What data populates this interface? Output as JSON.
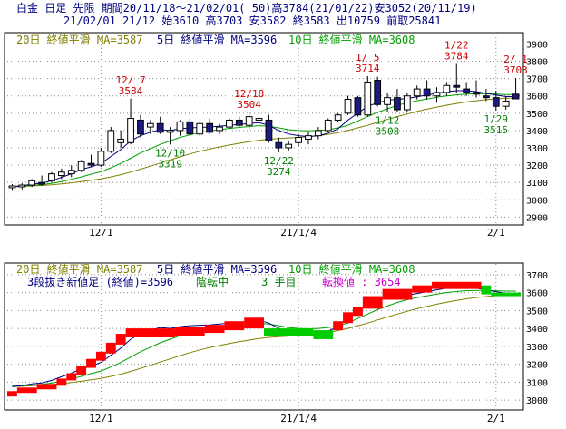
{
  "header": {
    "line1": "白金 日足 先限 期間20/11/18～21/02/01( 50)高3784(21/01/22)安3052(20/11/19)",
    "line2": "21/02/01 21/12 始3610 高3703 安3582 終3583 出10759 前取25841"
  },
  "colors": {
    "up": "#ffffff",
    "down": "#1a1a80",
    "ma20": "#808000",
    "ma5": "#000080",
    "ma10": "#00a000",
    "red": "#cc0000",
    "green": "#008000",
    "magenta": "#cc00cc",
    "brick_up": "#ff0000",
    "brick_down": "#00cc00"
  },
  "chart_data": [
    {
      "type": "candlestick",
      "legend": [
        "20日 終値平滑 MA=3587",
        "5日 終値平滑 MA=3596",
        "10日 終値平滑 MA=3608"
      ],
      "y_ticks": [
        3900,
        3800,
        3700,
        3600,
        3500,
        3400,
        3300,
        3200,
        3100,
        3000,
        2900
      ],
      "ylim": [
        2860,
        3960
      ],
      "x_ticks": [
        "12/1",
        "21/1/4",
        "2/1"
      ],
      "x_tick_index": [
        9,
        29,
        49
      ],
      "ohlc": [
        [
          3070,
          3090,
          3052,
          3080
        ],
        [
          3075,
          3095,
          3060,
          3085
        ],
        [
          3085,
          3120,
          3075,
          3110
        ],
        [
          3100,
          3140,
          3080,
          3090
        ],
        [
          3110,
          3160,
          3100,
          3150
        ],
        [
          3140,
          3180,
          3120,
          3160
        ],
        [
          3150,
          3200,
          3130,
          3170
        ],
        [
          3170,
          3230,
          3160,
          3220
        ],
        [
          3210,
          3260,
          3190,
          3200
        ],
        [
          3200,
          3300,
          3190,
          3280
        ],
        [
          3280,
          3420,
          3270,
          3400
        ],
        [
          3330,
          3400,
          3300,
          3350
        ],
        [
          3330,
          3584,
          3320,
          3470
        ],
        [
          3460,
          3490,
          3360,
          3380
        ],
        [
          3420,
          3460,
          3380,
          3440
        ],
        [
          3440,
          3480,
          3380,
          3390
        ],
        [
          3390,
          3420,
          3319,
          3400
        ],
        [
          3400,
          3460,
          3370,
          3450
        ],
        [
          3450,
          3470,
          3370,
          3380
        ],
        [
          3380,
          3450,
          3370,
          3440
        ],
        [
          3440,
          3470,
          3380,
          3390
        ],
        [
          3400,
          3440,
          3380,
          3420
        ],
        [
          3420,
          3470,
          3410,
          3460
        ],
        [
          3460,
          3480,
          3420,
          3430
        ],
        [
          3430,
          3504,
          3410,
          3480
        ],
        [
          3460,
          3500,
          3430,
          3470
        ],
        [
          3460,
          3490,
          3330,
          3340
        ],
        [
          3330,
          3360,
          3274,
          3300
        ],
        [
          3300,
          3340,
          3280,
          3320
        ],
        [
          3330,
          3380,
          3310,
          3360
        ],
        [
          3350,
          3390,
          3320,
          3370
        ],
        [
          3370,
          3420,
          3350,
          3400
        ],
        [
          3400,
          3470,
          3390,
          3460
        ],
        [
          3460,
          3500,
          3450,
          3490
        ],
        [
          3500,
          3600,
          3490,
          3580
        ],
        [
          3590,
          3600,
          3480,
          3490
        ],
        [
          3490,
          3714,
          3480,
          3680
        ],
        [
          3690,
          3710,
          3540,
          3550
        ],
        [
          3550,
          3620,
          3508,
          3590
        ],
        [
          3590,
          3640,
          3510,
          3520
        ],
        [
          3520,
          3620,
          3510,
          3600
        ],
        [
          3600,
          3660,
          3580,
          3640
        ],
        [
          3640,
          3690,
          3580,
          3600
        ],
        [
          3600,
          3650,
          3560,
          3620
        ],
        [
          3620,
          3680,
          3600,
          3660
        ],
        [
          3660,
          3784,
          3620,
          3650
        ],
        [
          3640,
          3680,
          3600,
          3620
        ],
        [
          3620,
          3690,
          3590,
          3610
        ],
        [
          3600,
          3640,
          3570,
          3590
        ],
        [
          3590,
          3630,
          3515,
          3540
        ],
        [
          3540,
          3600,
          3520,
          3570
        ],
        [
          3610,
          3703,
          3582,
          3583
        ]
      ],
      "ma5": [
        3075,
        3081,
        3090,
        3096,
        3110,
        3130,
        3150,
        3175,
        3190,
        3210,
        3250,
        3290,
        3340,
        3370,
        3390,
        3405,
        3400,
        3410,
        3415,
        3418,
        3420,
        3425,
        3430,
        3435,
        3440,
        3445,
        3430,
        3400,
        3380,
        3370,
        3365,
        3370,
        3385,
        3410,
        3460,
        3500,
        3540,
        3560,
        3575,
        3580,
        3585,
        3595,
        3605,
        3615,
        3625,
        3630,
        3630,
        3625,
        3615,
        3605,
        3596,
        3596
      ],
      "ma10": [
        3078,
        3080,
        3083,
        3088,
        3095,
        3105,
        3118,
        3132,
        3148,
        3162,
        3185,
        3210,
        3240,
        3270,
        3295,
        3320,
        3340,
        3360,
        3375,
        3388,
        3398,
        3405,
        3412,
        3418,
        3423,
        3428,
        3425,
        3415,
        3405,
        3400,
        3398,
        3400,
        3405,
        3415,
        3430,
        3455,
        3480,
        3505,
        3525,
        3545,
        3560,
        3572,
        3582,
        3592,
        3600,
        3606,
        3610,
        3612,
        3612,
        3610,
        3608,
        3608
      ],
      "ma20": [
        3075,
        3077,
        3080,
        3083,
        3087,
        3092,
        3098,
        3105,
        3113,
        3121,
        3132,
        3145,
        3160,
        3177,
        3194,
        3212,
        3230,
        3248,
        3265,
        3280,
        3293,
        3305,
        3316,
        3326,
        3335,
        3344,
        3350,
        3354,
        3357,
        3360,
        3364,
        3370,
        3378,
        3388,
        3400,
        3415,
        3430,
        3447,
        3464,
        3480,
        3495,
        3510,
        3523,
        3535,
        3546,
        3556,
        3565,
        3572,
        3578,
        3583,
        3587,
        3587
      ],
      "annotations": [
        {
          "date": "12/ 7",
          "value": "3584",
          "i": 12,
          "kind": "high"
        },
        {
          "date": "12/10",
          "value": "3319",
          "i": 16,
          "kind": "low"
        },
        {
          "date": "12/18",
          "value": "3504",
          "i": 24,
          "kind": "high"
        },
        {
          "date": "12/22",
          "value": "3274",
          "i": 27,
          "kind": "low"
        },
        {
          "date": "1/ 5",
          "value": "3714",
          "i": 36,
          "kind": "high"
        },
        {
          "date": "1/12",
          "value": "3508",
          "i": 38,
          "kind": "low"
        },
        {
          "date": "1/22",
          "value": "3784",
          "i": 45,
          "kind": "high"
        },
        {
          "date": "1/29",
          "value": "3515",
          "i": 49,
          "kind": "low"
        },
        {
          "date": "2/ 1",
          "value": "3703",
          "i": 51,
          "kind": "high"
        }
      ]
    },
    {
      "type": "three_line_break",
      "legend": [
        "20日 終値平滑 MA=3587",
        "5日 終値平滑 MA=3596",
        "10日 終値平滑 MA=3608"
      ],
      "line2": {
        "a": "3段抜き新値足 (終値)=3596",
        "b": "陰転中",
        "c": "3 手目",
        "d": "転換値 : 3654"
      },
      "y_ticks": [
        3700,
        3600,
        3500,
        3400,
        3300,
        3200,
        3100,
        3000
      ],
      "ylim": [
        2950,
        3760
      ],
      "x_ticks": [
        "12/1",
        "21/1/4",
        "2/1"
      ],
      "x_tick_index": [
        9,
        29,
        49
      ],
      "bricks": [
        [
          0,
          1,
          3020,
          3050,
          "up"
        ],
        [
          1,
          3,
          3040,
          3070,
          "up"
        ],
        [
          3,
          5,
          3060,
          3090,
          "up"
        ],
        [
          5,
          6,
          3080,
          3120,
          "up"
        ],
        [
          6,
          7,
          3110,
          3150,
          "up"
        ],
        [
          7,
          8,
          3140,
          3190,
          "up"
        ],
        [
          8,
          9,
          3180,
          3230,
          "up"
        ],
        [
          9,
          10,
          3220,
          3270,
          "up"
        ],
        [
          10,
          11,
          3260,
          3320,
          "up"
        ],
        [
          11,
          12,
          3310,
          3370,
          "up"
        ],
        [
          12,
          17,
          3350,
          3400,
          "up"
        ],
        [
          17,
          20,
          3360,
          3410,
          "up"
        ],
        [
          20,
          22,
          3375,
          3420,
          "up"
        ],
        [
          22,
          24,
          3390,
          3440,
          "up"
        ],
        [
          24,
          26,
          3400,
          3460,
          "up"
        ],
        [
          26,
          31,
          3360,
          3400,
          "down"
        ],
        [
          31,
          33,
          3340,
          3390,
          "down"
        ],
        [
          33,
          34,
          3390,
          3440,
          "up"
        ],
        [
          34,
          35,
          3430,
          3490,
          "up"
        ],
        [
          35,
          36,
          3470,
          3520,
          "up"
        ],
        [
          36,
          38,
          3510,
          3580,
          "up"
        ],
        [
          38,
          41,
          3560,
          3620,
          "up"
        ],
        [
          41,
          43,
          3600,
          3640,
          "up"
        ],
        [
          43,
          48,
          3620,
          3660,
          "up"
        ],
        [
          48,
          49,
          3590,
          3640,
          "down"
        ],
        [
          49,
          52,
          3580,
          3600,
          "down"
        ]
      ]
    }
  ]
}
